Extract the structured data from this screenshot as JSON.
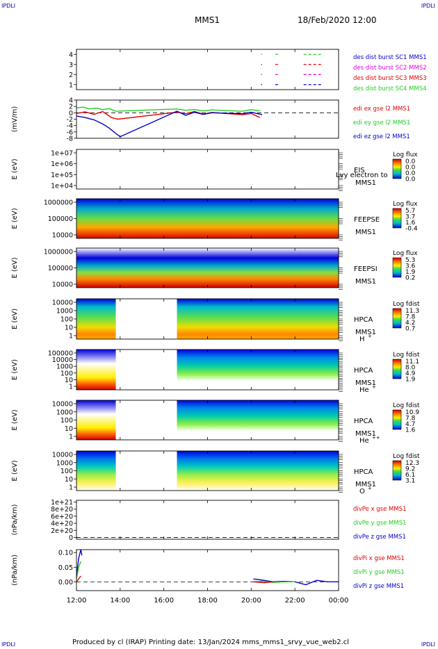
{
  "header": {
    "corner_left_top": "IPDLI",
    "corner_right_top": "IPDLI",
    "corner_left_bottom": "IPDLI",
    "corner_right_bottom": "IPDLI",
    "spacecraft": "MMS1",
    "datetime": "18/Feb/2020 12:00"
  },
  "footer": {
    "text": "Produced by cl (IRAP)   Printing date: 13/Jan/2024   mms_mms1_srvy_vue_web2.cl"
  },
  "colors": {
    "red": "#dd0000",
    "green": "#22cc22",
    "blue": "#0000cc",
    "magenta": "#dd00dd"
  },
  "chart_data": [
    {
      "type": "line",
      "panel": "burst",
      "y_ticks": [
        "4",
        "3",
        "2",
        "1"
      ],
      "ylim": [
        0.5,
        4.5
      ],
      "legend": [
        {
          "text": "des dist burst SC1 MMS1",
          "color": "#0000cc"
        },
        {
          "text": "des dist burst SC2 MMS2",
          "color": "#dd00dd"
        },
        {
          "text": "des dist burst SC3 MMS3",
          "color": "#dd0000"
        },
        {
          "text": "des dist burst SC4 MMS4",
          "color": "#22cc22"
        }
      ],
      "segments": [
        {
          "level": 4,
          "x": [
            20.45,
            20.47
          ],
          "color": "#22cc22"
        },
        {
          "level": 4,
          "x": [
            21.1,
            21.3
          ],
          "color": "#22cc22"
        },
        {
          "level": 4,
          "x": [
            22.4,
            23.2
          ],
          "color": "#22cc22"
        },
        {
          "level": 3,
          "x": [
            20.45,
            20.47
          ],
          "color": "#dd0000"
        },
        {
          "level": 3,
          "x": [
            21.1,
            21.3
          ],
          "color": "#dd0000"
        },
        {
          "level": 3,
          "x": [
            22.4,
            23.2
          ],
          "color": "#dd0000"
        },
        {
          "level": 2,
          "x": [
            20.45,
            20.47
          ],
          "color": "#dd00dd"
        },
        {
          "level": 2,
          "x": [
            21.1,
            21.3
          ],
          "color": "#dd00dd"
        },
        {
          "level": 2,
          "x": [
            22.4,
            23.2
          ],
          "color": "#dd00dd"
        },
        {
          "level": 1,
          "x": [
            20.45,
            20.47
          ],
          "color": "#0000cc"
        },
        {
          "level": 1,
          "x": [
            21.1,
            21.3
          ],
          "color": "#0000cc"
        },
        {
          "level": 1,
          "x": [
            22.4,
            23.2
          ],
          "color": "#0000cc"
        }
      ]
    },
    {
      "type": "line",
      "panel": "edi",
      "ylabel": "(mV/m)",
      "y_ticks": [
        "4",
        "2",
        "0",
        "-2",
        "-4",
        "-6",
        "-8"
      ],
      "ylim": [
        -8,
        4
      ],
      "legend": [
        {
          "text": "edi ex gse l2 MMS1",
          "color": "#dd0000"
        },
        {
          "text": "edi ey gse l2 MMS1",
          "color": "#22cc22"
        },
        {
          "text": "edi ez gse l2 MMS1",
          "color": "#0000cc"
        }
      ],
      "series": [
        {
          "color": "#22cc22",
          "x": [
            12.0,
            12.3,
            12.6,
            12.9,
            13.2,
            13.5,
            13.8,
            16.6,
            17.0,
            17.4,
            17.8,
            18.2,
            19.6,
            20.0,
            20.4
          ],
          "y": [
            1.5,
            1.8,
            1.2,
            1.5,
            1.0,
            1.3,
            0.5,
            1.2,
            0.8,
            1.0,
            0.6,
            0.9,
            0.5,
            1.0,
            0.6
          ]
        },
        {
          "color": "#dd0000",
          "x": [
            12.0,
            12.4,
            12.8,
            13.2,
            13.6,
            13.9,
            16.6,
            17.0,
            17.4,
            17.8,
            18.2,
            19.6,
            20.0,
            20.4
          ],
          "y": [
            -0.2,
            0.3,
            -0.5,
            0.4,
            -1.5,
            -2.0,
            0.2,
            -0.3,
            0.4,
            -0.4,
            0.1,
            -0.6,
            -0.2,
            -1.5
          ]
        },
        {
          "color": "#0000cc",
          "x": [
            12.0,
            12.4,
            12.8,
            13.2,
            13.5,
            13.8,
            14.0,
            16.6,
            17.0,
            17.4,
            17.8,
            18.2,
            19.6,
            20.0,
            20.5
          ],
          "y": [
            -1.0,
            -1.5,
            -2.2,
            -3.5,
            -4.8,
            -6.5,
            -7.5,
            0.5,
            -0.8,
            0.2,
            -0.5,
            0.0,
            -0.3,
            0.2,
            -0.6
          ]
        }
      ]
    },
    {
      "type": "heatmap",
      "panel": "EIS",
      "ylabel": "E (eV)",
      "y_ticks": [
        "1e+07",
        "1e+06",
        "1e+05",
        "1e+04"
      ],
      "instrument": "EIS",
      "species": "",
      "overlay_text": "Lvy electron to",
      "spacecraft": "MMS1",
      "colorbar_title": "Log flux",
      "colorbar_values": [
        "0.0",
        "0.0",
        "0.0",
        "0.0"
      ],
      "coverage": []
    },
    {
      "type": "heatmap",
      "panel": "FEEPSE",
      "ylabel": "E (eV)",
      "y_ticks": [
        "1000000",
        "100000",
        "10000"
      ],
      "instrument": "FEEPSE",
      "species": "",
      "spacecraft": "MMS1",
      "colorbar_title": "Log flux",
      "colorbar_values": [
        "5.7",
        "3.7",
        "1.6",
        "-0.4"
      ],
      "coverage": [
        [
          12.0,
          24.0
        ]
      ]
    },
    {
      "type": "heatmap",
      "panel": "FEEPSI",
      "ylabel": "E (eV)",
      "y_ticks": [
        "1000000",
        "100000",
        "10000"
      ],
      "instrument": "FEEPSI",
      "species": "",
      "spacecraft": "MMS1",
      "colorbar_title": "Log flux",
      "colorbar_values": [
        "5.3",
        "3.6",
        "1.9",
        "0.2"
      ],
      "coverage": [
        [
          12.0,
          24.0
        ]
      ]
    },
    {
      "type": "heatmap",
      "panel": "HPCA H+",
      "ylabel": "E (eV)",
      "y_ticks": [
        "10000",
        "1000",
        "100",
        "10",
        "1"
      ],
      "instrument": "HPCA",
      "spacecraft": "MMS1",
      "species": "H",
      "species_sup": "+",
      "colorbar_title": "Log fdist",
      "colorbar_values": [
        "11.3",
        "7.8",
        "4.2",
        "0.7"
      ],
      "coverage": [
        [
          12.0,
          13.8
        ],
        [
          16.6,
          24.0
        ]
      ]
    },
    {
      "type": "heatmap",
      "panel": "HPCA He+",
      "ylabel": "E (eV)",
      "y_ticks": [
        "100000",
        "10000",
        "1000",
        "100",
        "10",
        "1"
      ],
      "instrument": "HPCA",
      "spacecraft": "MMS1",
      "species": "He",
      "species_sup": "+",
      "colorbar_title": "Log fdist",
      "colorbar_values": [
        "11.1",
        "8.0",
        "4.9",
        "1.9"
      ],
      "coverage": [
        [
          12.0,
          13.8
        ],
        [
          16.6,
          24.0
        ]
      ]
    },
    {
      "type": "heatmap",
      "panel": "HPCA He++",
      "ylabel": "E (eV)",
      "y_ticks": [
        "10000",
        "1000",
        "100",
        "10",
        "1"
      ],
      "instrument": "HPCA",
      "spacecraft": "MMS1",
      "species": "He",
      "species_sup": "++",
      "colorbar_title": "Log fdist",
      "colorbar_values": [
        "10.9",
        "7.8",
        "4.7",
        "1.6"
      ],
      "coverage": [
        [
          12.0,
          13.8
        ],
        [
          16.6,
          24.0
        ]
      ]
    },
    {
      "type": "heatmap",
      "panel": "HPCA O+",
      "ylabel": "E (eV)",
      "y_ticks": [
        "10000",
        "1000",
        "100",
        "10",
        "1"
      ],
      "instrument": "HPCA",
      "spacecraft": "MMS1",
      "species": "O",
      "species_sup": "+",
      "colorbar_title": "Log fdist",
      "colorbar_values": [
        "12.3",
        "9.2",
        "6.1",
        "3.1"
      ],
      "coverage": [
        [
          12.0,
          13.8
        ],
        [
          16.6,
          24.0
        ]
      ]
    },
    {
      "type": "line",
      "panel": "divPe",
      "ylabel": "(nPa/km)",
      "y_ticks": [
        "1e+21",
        "8e+20",
        "6e+20",
        "4e+20",
        "2e+20",
        "0"
      ],
      "ylim": [
        -5e+19,
        1.05e+21
      ],
      "legend": [
        {
          "text": "divPe x gse MMS1",
          "color": "#dd0000"
        },
        {
          "text": "divPe y gse MMS1",
          "color": "#22cc22"
        },
        {
          "text": "divPe z gse MMS1",
          "color": "#0000cc"
        }
      ],
      "series": []
    },
    {
      "type": "line",
      "panel": "divPi",
      "ylabel": "(nPa/km)",
      "y_ticks": [
        "0.10",
        "0.05",
        "0.00"
      ],
      "ylim": [
        -0.03,
        0.11
      ],
      "legend": [
        {
          "text": "divPi x gse MMS1",
          "color": "#dd0000"
        },
        {
          "text": "divPi y gse MMS1",
          "color": "#22cc22"
        },
        {
          "text": "divPi z gse MMS1",
          "color": "#0000cc"
        }
      ],
      "series": [
        {
          "color": "#0000cc",
          "x": [
            12.0,
            12.1,
            12.2,
            12.25
          ],
          "y": [
            0.02,
            0.08,
            0.11,
            0.09
          ]
        },
        {
          "color": "#22cc22",
          "x": [
            12.0,
            12.1,
            12.2
          ],
          "y": [
            0.01,
            0.05,
            0.07
          ]
        },
        {
          "color": "#dd0000",
          "x": [
            12.0,
            12.1,
            12.2
          ],
          "y": [
            0.0,
            0.01,
            0.02
          ]
        },
        {
          "color": "#0000cc",
          "x": [
            20.1,
            20.6,
            21.0,
            21.5,
            22.0,
            22.5,
            23.0,
            23.5,
            24.0
          ],
          "y": [
            0.01,
            0.005,
            0.0,
            0.002,
            0.0,
            -0.01,
            0.005,
            0.0,
            0.0
          ]
        },
        {
          "color": "#22cc22",
          "x": [
            20.1,
            20.6,
            21.0,
            21.5,
            22.0
          ],
          "y": [
            0.0,
            0.002,
            -0.002,
            0.0,
            0.0
          ]
        },
        {
          "color": "#dd0000",
          "x": [
            20.1,
            20.6,
            21.0
          ],
          "y": [
            0.0,
            -0.003,
            0.0
          ]
        }
      ]
    }
  ],
  "time_axis": {
    "ticks": [
      "12:00",
      "14:00",
      "16:00",
      "18:00",
      "20:00",
      "22:00",
      "00:00"
    ],
    "hours": [
      12,
      14,
      16,
      18,
      20,
      22,
      24
    ],
    "xlim": [
      12,
      24
    ]
  }
}
